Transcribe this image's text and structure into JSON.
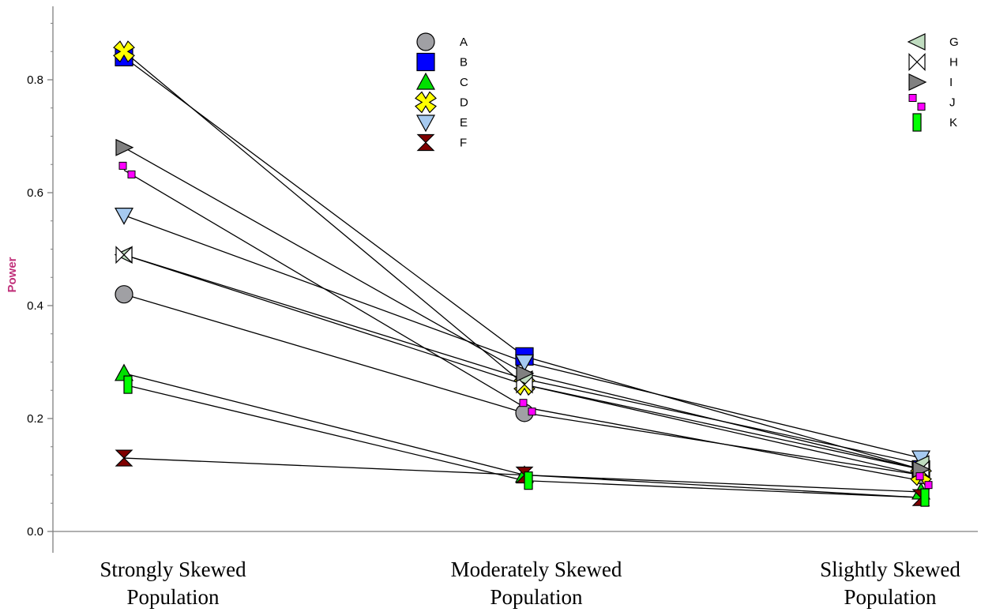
{
  "chart_data": {
    "type": "line",
    "title": "",
    "xlabel": "",
    "ylabel": "Power",
    "ylim": [
      0,
      0.92
    ],
    "yticks": [
      0.0,
      0.2,
      0.4,
      0.6,
      0.8
    ],
    "ytick_labels": [
      "0.0",
      "0.2",
      "0.4",
      "0.6",
      "0.8"
    ],
    "categories": [
      [
        "Strongly Skewed",
        "Population"
      ],
      [
        "Moderately Skewed",
        "Population"
      ],
      [
        "Slightly Skewed",
        "Population"
      ]
    ],
    "grid": false,
    "legend": {
      "left": "top-center",
      "right": "top-right"
    },
    "colors": {
      "axis": "#808080",
      "line": "#000000",
      "ylabel": "#c0307a"
    },
    "series": [
      {
        "name": "A",
        "marker": "circle",
        "color": "#a0a0a4",
        "values": [
          0.42,
          0.21,
          0.1
        ]
      },
      {
        "name": "B",
        "marker": "square",
        "color": "#0000ff",
        "values": [
          0.84,
          0.31,
          0.11
        ]
      },
      {
        "name": "C",
        "marker": "triangle-up",
        "color": "#00e000",
        "values": [
          0.28,
          0.1,
          0.07
        ]
      },
      {
        "name": "D",
        "marker": "x-box",
        "color": "#ffff00",
        "values": [
          0.85,
          0.26,
          0.1
        ]
      },
      {
        "name": "E",
        "marker": "triangle-down",
        "color": "#a6caf0",
        "values": [
          0.56,
          0.3,
          0.13
        ]
      },
      {
        "name": "F",
        "marker": "hourglass",
        "color": "#800000",
        "values": [
          0.13,
          0.1,
          0.06
        ]
      },
      {
        "name": "G",
        "marker": "triangle-left",
        "color": "#c0dcc0",
        "values": [
          0.49,
          0.27,
          0.12
        ]
      },
      {
        "name": "H",
        "marker": "bowtie",
        "color": "#ffffff",
        "values": [
          0.49,
          0.26,
          0.11
        ]
      },
      {
        "name": "I",
        "marker": "triangle-right",
        "color": "#808080",
        "values": [
          0.68,
          0.28,
          0.11
        ]
      },
      {
        "name": "J",
        "marker": "two-squares",
        "color": "#ff00ff",
        "values": [
          0.64,
          0.22,
          0.09
        ]
      },
      {
        "name": "K",
        "marker": "bar",
        "color": "#00ff00",
        "values": [
          0.26,
          0.09,
          0.06
        ]
      }
    ]
  }
}
